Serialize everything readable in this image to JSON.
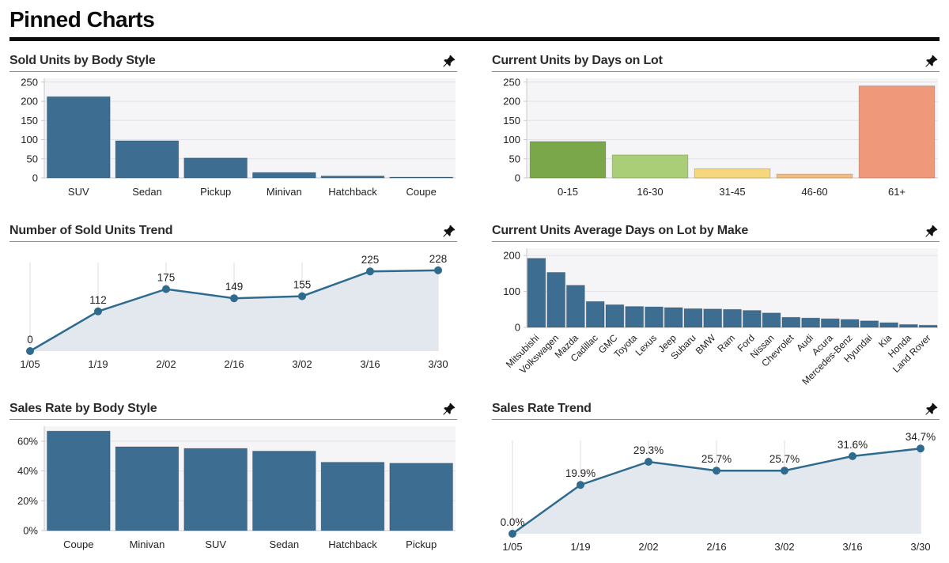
{
  "page": {
    "title": "Pinned Charts"
  },
  "icons": {
    "pin": "pushpin-icon"
  },
  "colors": {
    "bar_blue": "#3d6d90",
    "line_blue": "#2f6a8f",
    "area_fill": "#e2e8ee",
    "plot_bg": "#f5f5f7",
    "grid_line": "#e4e4e8",
    "axis_line": "#c9c9ce",
    "days_scale": [
      "#7ba74b",
      "#aacd77",
      "#f6d77d",
      "#f3bd7f",
      "#f0997a"
    ]
  },
  "chart_data": [
    {
      "id": "sold-units-by-body-style",
      "type": "bar",
      "title": "Sold Units by Body Style",
      "categories": [
        "SUV",
        "Sedan",
        "Pickup",
        "Minivan",
        "Hatchback",
        "Coupe"
      ],
      "values": [
        212,
        97,
        52,
        14,
        5,
        2
      ],
      "ylim": [
        0,
        260
      ],
      "yticks": [
        0,
        50,
        100,
        150,
        200,
        250
      ],
      "ytick_suffix": "",
      "bar_color": "#3d6d90",
      "grid": true,
      "legend": false
    },
    {
      "id": "current-units-by-days-on-lot",
      "type": "bar",
      "title": "Current Units by Days on Lot",
      "categories": [
        "0-15",
        "16-30",
        "31-45",
        "46-60",
        "61+"
      ],
      "values": [
        95,
        60,
        24,
        10,
        240
      ],
      "ylim": [
        0,
        260
      ],
      "yticks": [
        0,
        50,
        100,
        150,
        200,
        250
      ],
      "ytick_suffix": "",
      "bar_colors": [
        "#7ba74b",
        "#aacd77",
        "#f6d77d",
        "#f3bd7f",
        "#f0997a"
      ],
      "grid": true,
      "legend": false
    },
    {
      "id": "number-of-sold-units-trend",
      "type": "area",
      "title": "Number of Sold Units Trend",
      "x": [
        "1/05",
        "1/19",
        "2/02",
        "2/16",
        "3/02",
        "3/16",
        "3/30"
      ],
      "values": [
        0,
        112,
        175,
        149,
        155,
        225,
        228
      ],
      "point_labels": [
        "0",
        "112",
        "175",
        "149",
        "155",
        "225",
        "228"
      ],
      "ylim": [
        0,
        250
      ],
      "line_color": "#2f6a8f",
      "fill_color": "#e2e8ee",
      "grid": true,
      "legend": false
    },
    {
      "id": "current-units-average-days-on-lot-by-make",
      "type": "bar",
      "title": "Current Units Average Days on Lot by Make",
      "categories": [
        "Mitsubishi",
        "Volkswagen",
        "Mazda",
        "Cadillac",
        "GMC",
        "Toyota",
        "Lexus",
        "Jeep",
        "Subaru",
        "BMW",
        "Ram",
        "Ford",
        "Nissan",
        "Chevrolet",
        "Audi",
        "Acura",
        "Mercedes-Benz",
        "Hyundai",
        "Kia",
        "Honda",
        "Land Rover"
      ],
      "values": [
        192,
        153,
        117,
        72,
        63,
        58,
        57,
        55,
        52,
        51,
        50,
        47,
        40,
        28,
        26,
        24,
        22,
        18,
        13,
        8,
        6
      ],
      "ylim": [
        0,
        220
      ],
      "yticks": [
        0,
        100,
        200
      ],
      "ytick_suffix": "",
      "bar_color": "#3d6d90",
      "rotate_labels": 45,
      "grid": true,
      "legend": false
    },
    {
      "id": "sales-rate-by-body-style",
      "type": "bar",
      "title": "Sales Rate by Body Style",
      "categories": [
        "Coupe",
        "Minivan",
        "SUV",
        "Sedan",
        "Hatchback",
        "Pickup"
      ],
      "values": [
        66.7,
        56.2,
        55.1,
        53.3,
        45.8,
        45.2
      ],
      "ylim": [
        0,
        70
      ],
      "yticks": [
        0,
        20,
        40,
        60
      ],
      "ytick_suffix": "%",
      "bar_color": "#3d6d90",
      "grid": true,
      "legend": false
    },
    {
      "id": "sales-rate-trend",
      "type": "area",
      "title": "Sales Rate Trend",
      "x": [
        "1/05",
        "1/19",
        "2/02",
        "2/16",
        "3/02",
        "3/16",
        "3/30"
      ],
      "values": [
        0.0,
        19.9,
        29.3,
        25.7,
        25.7,
        31.6,
        34.7
      ],
      "point_labels": [
        "0.0%",
        "19.9%",
        "29.3%",
        "25.7%",
        "25.7%",
        "31.6%",
        "34.7%"
      ],
      "ylim": [
        0,
        38
      ],
      "line_color": "#2f6a8f",
      "fill_color": "#e2e8ee",
      "grid": true,
      "legend": false
    }
  ]
}
